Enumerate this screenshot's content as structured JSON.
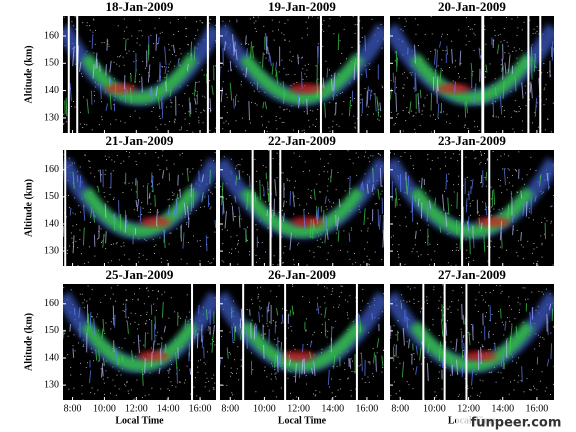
{
  "figure": {
    "panels": [
      {
        "title": "18-Jan-2009"
      },
      {
        "title": "19-Jan-2009"
      },
      {
        "title": "20-Jan-2009"
      },
      {
        "title": "21-Jan-2009"
      },
      {
        "title": "22-Jan-2009"
      },
      {
        "title": "23-Jan-2009"
      },
      {
        "title": "25-Jan-2009"
      },
      {
        "title": "26-Jan-2009"
      },
      {
        "title": "27-Jan-2009"
      }
    ],
    "y_label": "Altitude (km)",
    "x_label": "Local Time",
    "ylim": [
      124.5,
      167.3
    ],
    "yticks": [
      130,
      140,
      150,
      160
    ],
    "xlim": [
      7.4,
      17
    ],
    "xticks": [
      {
        "value": 8,
        "label": "8:00"
      },
      {
        "value": 10,
        "label": "10:00"
      },
      {
        "value": 12,
        "label": "12:00"
      },
      {
        "value": 14,
        "label": "14:00"
      },
      {
        "value": 16,
        "label": "16:00"
      }
    ]
  },
  "watermark": "funpeer.com"
}
